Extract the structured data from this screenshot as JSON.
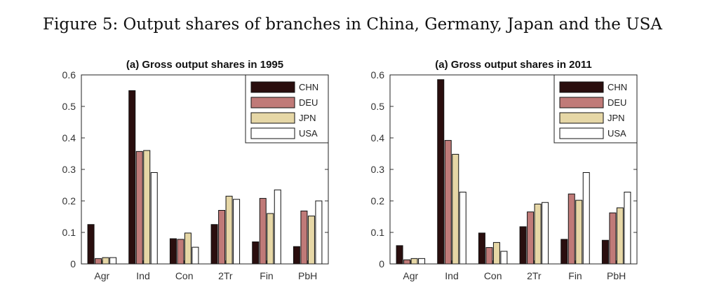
{
  "figure": {
    "title": "Figure 5: Output shares of branches in China, Germany, Japan and the USA"
  },
  "chart_data": [
    {
      "type": "bar",
      "title": "(a) Gross output shares in 1995",
      "xlabel": "",
      "ylabel": "",
      "categories": [
        "Agr",
        "Ind",
        "Con",
        "2Tr",
        "Fin",
        "PbH"
      ],
      "ylim": [
        0,
        0.6
      ],
      "yticks": [
        "0",
        "0.1",
        "0.2",
        "0.3",
        "0.4",
        "0.5",
        "0.6"
      ],
      "legend_position": "top-right",
      "series": [
        {
          "name": "CHN",
          "color": "#2a0e0e",
          "values": [
            0.125,
            0.55,
            0.08,
            0.125,
            0.07,
            0.055
          ]
        },
        {
          "name": "DEU",
          "color": "#c07a78",
          "values": [
            0.017,
            0.357,
            0.078,
            0.17,
            0.208,
            0.168
          ]
        },
        {
          "name": "JPN",
          "color": "#e6d7a6",
          "values": [
            0.02,
            0.36,
            0.098,
            0.215,
            0.16,
            0.152
          ]
        },
        {
          "name": "USA",
          "color": "#ffffff",
          "values": [
            0.02,
            0.29,
            0.053,
            0.205,
            0.235,
            0.2
          ]
        }
      ]
    },
    {
      "type": "bar",
      "title": "(a) Gross output shares in 2011",
      "xlabel": "",
      "ylabel": "",
      "categories": [
        "Agr",
        "Ind",
        "Con",
        "2Tr",
        "Fin",
        "PbH"
      ],
      "ylim": [
        0,
        0.6
      ],
      "yticks": [
        "0",
        "0.1",
        "0.2",
        "0.3",
        "0.4",
        "0.5",
        "0.6"
      ],
      "legend_position": "top-right",
      "series": [
        {
          "name": "CHN",
          "color": "#2a0e0e",
          "values": [
            0.058,
            0.585,
            0.098,
            0.118,
            0.078,
            0.075
          ]
        },
        {
          "name": "DEU",
          "color": "#c07a78",
          "values": [
            0.013,
            0.392,
            0.052,
            0.165,
            0.222,
            0.162
          ]
        },
        {
          "name": "JPN",
          "color": "#e6d7a6",
          "values": [
            0.017,
            0.348,
            0.068,
            0.19,
            0.202,
            0.178
          ]
        },
        {
          "name": "USA",
          "color": "#ffffff",
          "values": [
            0.017,
            0.228,
            0.04,
            0.195,
            0.29,
            0.228
          ]
        }
      ]
    }
  ]
}
